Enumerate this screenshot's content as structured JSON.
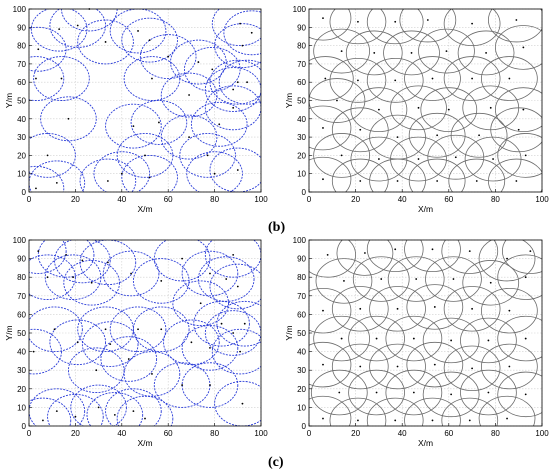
{
  "labels": {
    "b": "(b)",
    "c": "(c)"
  },
  "colors": {
    "blue": "#2a3cd8",
    "gray": "#6b6b6b",
    "grid": "#cfcfcf",
    "point": "#000000"
  },
  "chart_data": [
    {
      "id": "b-left",
      "type": "scatter",
      "xlabel": "X/m",
      "ylabel": "Y/m",
      "xlim": [
        0,
        100
      ],
      "ylim": [
        0,
        100
      ],
      "xticks": [
        0,
        20,
        40,
        60,
        80,
        100
      ],
      "yticks": [
        0,
        10,
        20,
        30,
        40,
        50,
        60,
        70,
        80,
        90,
        100
      ],
      "grid": true,
      "circle_style": "blue-dashed",
      "radius": 12,
      "points": [
        [
          4,
          78
        ],
        [
          14,
          62
        ],
        [
          3,
          62
        ],
        [
          13,
          89
        ],
        [
          21,
          91
        ],
        [
          26,
          100
        ],
        [
          33,
          82
        ],
        [
          47,
          88
        ],
        [
          52,
          83
        ],
        [
          17,
          40
        ],
        [
          45,
          36
        ],
        [
          53,
          62
        ],
        [
          56,
          38
        ],
        [
          60,
          74
        ],
        [
          69,
          53
        ],
        [
          73,
          71
        ],
        [
          79,
          67
        ],
        [
          82,
          37
        ],
        [
          88,
          56
        ],
        [
          91,
          92
        ],
        [
          96,
          87
        ],
        [
          92,
          80
        ],
        [
          94,
          60
        ],
        [
          90,
          60
        ],
        [
          88,
          46
        ],
        [
          69,
          30
        ],
        [
          77,
          20
        ],
        [
          80,
          10
        ],
        [
          90,
          12
        ],
        [
          40,
          10
        ],
        [
          50,
          20
        ],
        [
          52,
          8
        ],
        [
          34,
          6
        ],
        [
          8,
          20
        ],
        [
          12,
          5
        ],
        [
          3,
          2
        ]
      ]
    },
    {
      "id": "b-right",
      "type": "scatter",
      "xlabel": "X/m",
      "ylabel": "Y/m",
      "xlim": [
        0,
        100
      ],
      "ylim": [
        0,
        100
      ],
      "xticks": [
        0,
        20,
        40,
        60,
        80,
        100
      ],
      "yticks": [
        0,
        10,
        20,
        30,
        40,
        50,
        60,
        70,
        80,
        90,
        100
      ],
      "grid": true,
      "circle_style": "gray-solid",
      "radius": 12,
      "points": [
        [
          6,
          95
        ],
        [
          21,
          93
        ],
        [
          37,
          93
        ],
        [
          51,
          94
        ],
        [
          70,
          92
        ],
        [
          89,
          94
        ],
        [
          14,
          77
        ],
        [
          28,
          76
        ],
        [
          44,
          76
        ],
        [
          59,
          77
        ],
        [
          76,
          76
        ],
        [
          92,
          79
        ],
        [
          7,
          62
        ],
        [
          21,
          61
        ],
        [
          37,
          61
        ],
        [
          53,
          62
        ],
        [
          70,
          62
        ],
        [
          86,
          62
        ],
        [
          12,
          50
        ],
        [
          30,
          45
        ],
        [
          47,
          46
        ],
        [
          60,
          45
        ],
        [
          78,
          46
        ],
        [
          92,
          45
        ],
        [
          6,
          35
        ],
        [
          22,
          34
        ],
        [
          38,
          30
        ],
        [
          55,
          31
        ],
        [
          73,
          31
        ],
        [
          90,
          34
        ],
        [
          14,
          20
        ],
        [
          30,
          18
        ],
        [
          47,
          18
        ],
        [
          63,
          19
        ],
        [
          79,
          18
        ],
        [
          93,
          20
        ],
        [
          6,
          7
        ],
        [
          22,
          6
        ],
        [
          38,
          6
        ],
        [
          55,
          6
        ],
        [
          72,
          6
        ],
        [
          89,
          6
        ]
      ]
    },
    {
      "id": "c-left",
      "type": "scatter",
      "xlabel": "X/m",
      "ylabel": "Y/m",
      "xlim": [
        0,
        100
      ],
      "ylim": [
        0,
        100
      ],
      "xticks": [
        0,
        20,
        40,
        60,
        80,
        100
      ],
      "yticks": [
        0,
        10,
        20,
        30,
        40,
        50,
        60,
        70,
        80,
        90,
        100
      ],
      "grid": true,
      "circle_style": "blue-dashed",
      "radius": 12,
      "points": [
        [
          4,
          94
        ],
        [
          16,
          92
        ],
        [
          23,
          89
        ],
        [
          27,
          77
        ],
        [
          34,
          88
        ],
        [
          19,
          80
        ],
        [
          8,
          80
        ],
        [
          44,
          82
        ],
        [
          57,
          78
        ],
        [
          66,
          90
        ],
        [
          78,
          82
        ],
        [
          85,
          79
        ],
        [
          90,
          75
        ],
        [
          88,
          92
        ],
        [
          74,
          66
        ],
        [
          83,
          55
        ],
        [
          88,
          50
        ],
        [
          93,
          55
        ],
        [
          70,
          45
        ],
        [
          78,
          42
        ],
        [
          91,
          40
        ],
        [
          57,
          52
        ],
        [
          47,
          52
        ],
        [
          33,
          52
        ],
        [
          35,
          44
        ],
        [
          21,
          45
        ],
        [
          11,
          52
        ],
        [
          2,
          40
        ],
        [
          43,
          36
        ],
        [
          29,
          30
        ],
        [
          53,
          28
        ],
        [
          66,
          22
        ],
        [
          78,
          22
        ],
        [
          92,
          12
        ],
        [
          30,
          10
        ],
        [
          37,
          6
        ],
        [
          45,
          8
        ],
        [
          50,
          4
        ],
        [
          12,
          8
        ],
        [
          6,
          3
        ],
        [
          20,
          5
        ]
      ]
    },
    {
      "id": "c-right",
      "type": "scatter",
      "xlabel": "X/m",
      "ylabel": "Y/m",
      "xlim": [
        0,
        100
      ],
      "ylim": [
        0,
        100
      ],
      "xticks": [
        0,
        20,
        40,
        60,
        80,
        100
      ],
      "yticks": [
        0,
        10,
        20,
        30,
        40,
        50,
        60,
        70,
        80,
        90,
        100
      ],
      "grid": true,
      "circle_style": "gray-solid",
      "radius": 12,
      "points": [
        [
          8,
          92
        ],
        [
          24,
          93
        ],
        [
          37,
          95
        ],
        [
          53,
          95
        ],
        [
          69,
          94
        ],
        [
          85,
          90
        ],
        [
          95,
          94
        ],
        [
          15,
          78
        ],
        [
          31,
          79
        ],
        [
          46,
          79
        ],
        [
          62,
          79
        ],
        [
          78,
          77
        ],
        [
          93,
          80
        ],
        [
          6,
          62
        ],
        [
          22,
          63
        ],
        [
          38,
          63
        ],
        [
          54,
          64
        ],
        [
          70,
          63
        ],
        [
          86,
          62
        ],
        [
          14,
          47
        ],
        [
          29,
          47
        ],
        [
          45,
          47
        ],
        [
          61,
          46
        ],
        [
          77,
          46
        ],
        [
          93,
          47
        ],
        [
          6,
          33
        ],
        [
          22,
          32
        ],
        [
          38,
          32
        ],
        [
          54,
          33
        ],
        [
          70,
          31
        ],
        [
          86,
          32
        ],
        [
          13,
          18
        ],
        [
          29,
          18
        ],
        [
          45,
          18
        ],
        [
          61,
          17
        ],
        [
          77,
          18
        ],
        [
          93,
          17
        ],
        [
          6,
          4
        ],
        [
          21,
          3
        ],
        [
          37,
          3
        ],
        [
          53,
          3
        ],
        [
          69,
          3
        ],
        [
          85,
          4
        ]
      ]
    }
  ]
}
